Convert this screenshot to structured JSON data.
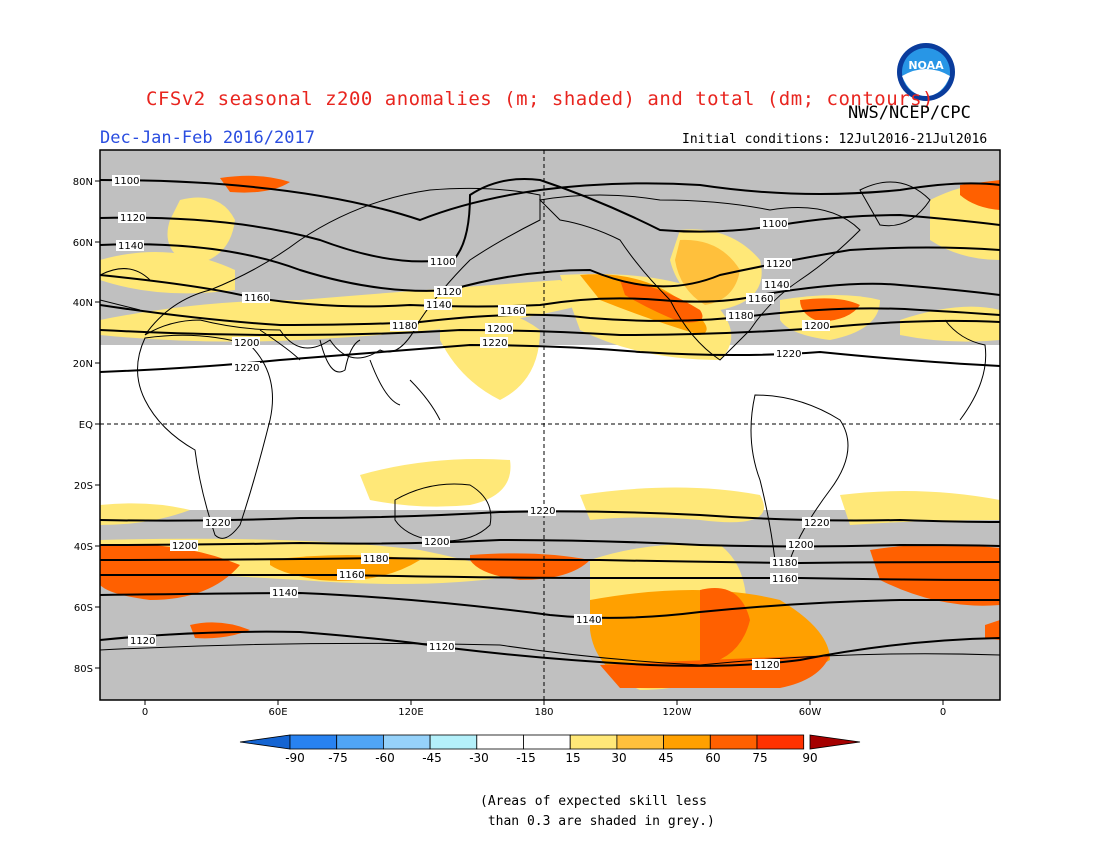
{
  "header": {
    "title": "CFSv2 seasonal z200 anomalies (m; shaded) and total (dm; contours)",
    "season": "Dec-Jan-Feb 2016/2017",
    "agency": "NWS/NCEP/CPC",
    "initial_conditions": "Initial conditions: 12Jul2016-21Jul2016",
    "logo_text": "NOAA"
  },
  "map": {
    "lat_labels": [
      "80N",
      "60N",
      "40N",
      "20N",
      "EQ",
      "20S",
      "40S",
      "60S",
      "80S"
    ],
    "lon_labels": [
      "0",
      "60E",
      "120E",
      "180",
      "120W",
      "60W",
      "0"
    ],
    "contour_labels": [
      "1100",
      "1120",
      "1140",
      "1160",
      "1180",
      "1200",
      "1220"
    ]
  },
  "colorbar": {
    "ticks": [
      "-90",
      "-75",
      "-60",
      "-45",
      "-30",
      "-15",
      "15",
      "30",
      "45",
      "60",
      "75",
      "90"
    ],
    "colors": [
      "#1464d2",
      "#2882f0",
      "#50a5f5",
      "#96d2fa",
      "#b4f0fa",
      "#ffffff",
      "#ffe878",
      "#ffc03c",
      "#ffa000",
      "#ff6000",
      "#ff3200",
      "#e11400",
      "#a50000"
    ]
  },
  "footnote": "(Areas of expected skill less\n than 0.3 are shaded in grey.)"
}
